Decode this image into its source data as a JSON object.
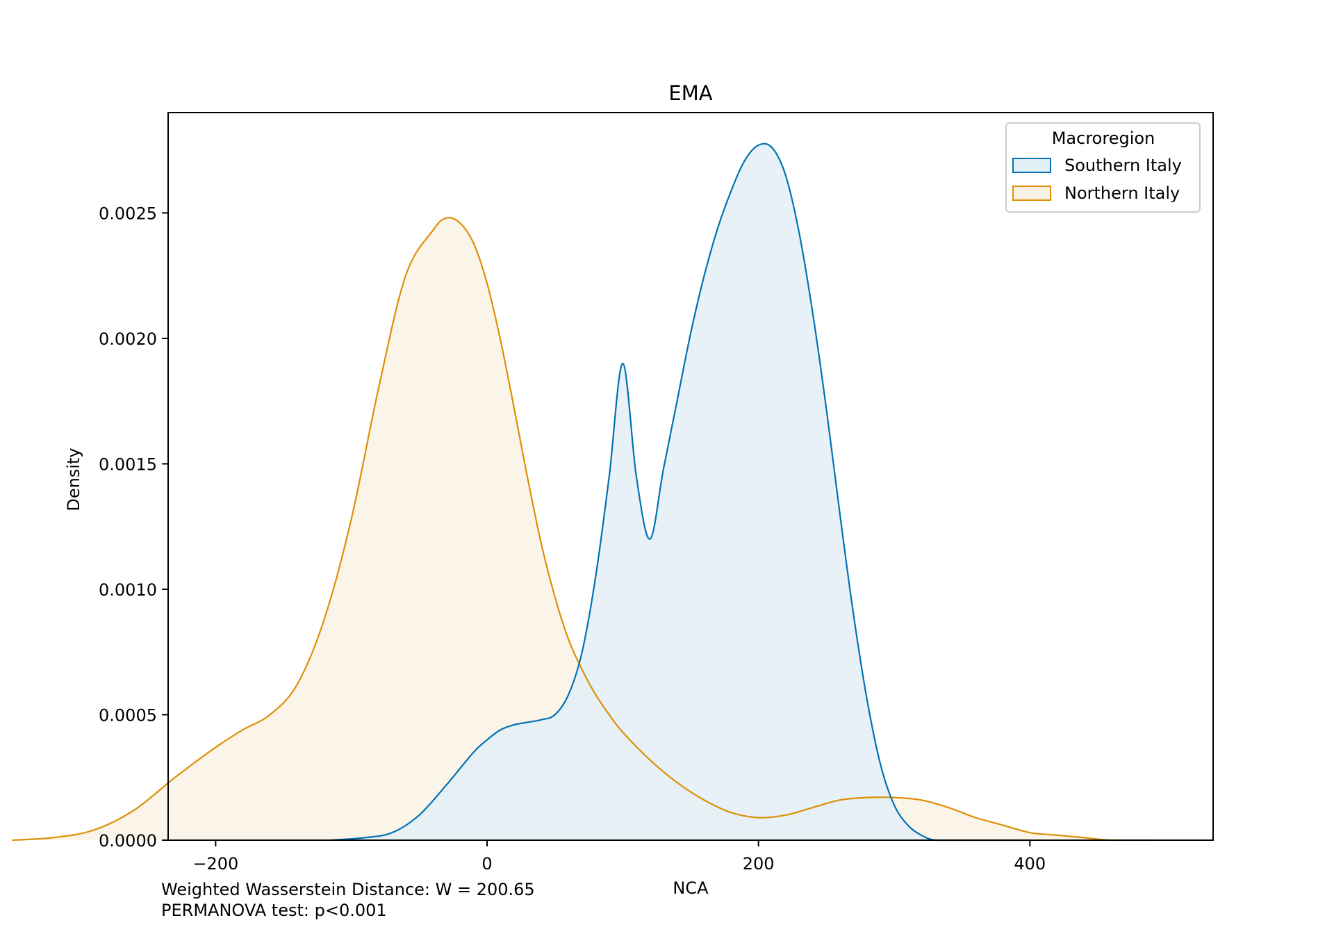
{
  "chart_data": {
    "type": "area",
    "title": "EMA",
    "xlabel": "NCA",
    "ylabel": "Density",
    "xlim": [
      -235,
      535
    ],
    "ylim": [
      0,
      0.0029
    ],
    "xticks": [
      -200,
      0,
      200,
      400
    ],
    "xtick_labels": [
      "−200",
      "0",
      "200",
      "400"
    ],
    "yticks": [
      0,
      0.0005,
      0.001,
      0.0015,
      0.002,
      0.0025
    ],
    "ytick_labels": [
      "0.0000",
      "0.0005",
      "0.0010",
      "0.0015",
      "0.0020",
      "0.0025"
    ],
    "grid": false,
    "legend": {
      "title": "Macroregion",
      "placement": "top-right"
    },
    "series": [
      {
        "name": "Southern Italy",
        "line_color": "#0072b2",
        "fill_color": "#e3eff6",
        "x": [
          -115,
          -90,
          -70,
          -50,
          -30,
          -10,
          0,
          10,
          20,
          30,
          40,
          50,
          60,
          70,
          80,
          90,
          100,
          110,
          120,
          130,
          140,
          150,
          160,
          170,
          180,
          190,
          200,
          210,
          220,
          230,
          240,
          250,
          260,
          270,
          280,
          290,
          300,
          310,
          320,
          330,
          345,
          360,
          385,
          400
        ],
        "values": [
          0.0,
          1e-05,
          3e-05,
          0.0001,
          0.00022,
          0.00035,
          0.0004,
          0.00044,
          0.00046,
          0.00047,
          0.00048,
          0.0005,
          0.00058,
          0.00075,
          0.00105,
          0.00145,
          0.0019,
          0.00145,
          0.0012,
          0.00148,
          0.00175,
          0.00202,
          0.00225,
          0.00244,
          0.00259,
          0.00271,
          0.00277,
          0.00276,
          0.00265,
          0.00242,
          0.0021,
          0.00172,
          0.0013,
          0.0009,
          0.00056,
          0.0003,
          0.00014,
          6e-05,
          2e-05,
          0.0,
          0.0,
          0.0,
          0.0,
          0.0
        ]
      },
      {
        "name": "Northern Italy",
        "line_color": "#de8f05",
        "fill_color": "#faf2e5",
        "x": [
          -350,
          -320,
          -290,
          -260,
          -230,
          -200,
          -180,
          -160,
          -140,
          -120,
          -100,
          -80,
          -60,
          -40,
          -30,
          -20,
          -10,
          0,
          10,
          20,
          30,
          40,
          50,
          60,
          70,
          80,
          90,
          100,
          120,
          140,
          160,
          180,
          200,
          220,
          240,
          260,
          280,
          300,
          320,
          340,
          360,
          380,
          400,
          420,
          440,
          460,
          490
        ],
        "values": [
          0.0,
          1e-05,
          4e-05,
          0.00012,
          0.00025,
          0.00037,
          0.00044,
          0.0005,
          0.00062,
          0.00088,
          0.00128,
          0.0018,
          0.00225,
          0.00243,
          0.00248,
          0.00246,
          0.00238,
          0.00222,
          0.00199,
          0.00172,
          0.00144,
          0.00118,
          0.00097,
          0.0008,
          0.00068,
          0.00058,
          0.0005,
          0.00043,
          0.00032,
          0.00023,
          0.00016,
          0.00011,
          9e-05,
          0.0001,
          0.00013,
          0.00016,
          0.00017,
          0.00017,
          0.00016,
          0.00013,
          9e-05,
          6e-05,
          3e-05,
          2e-05,
          1e-05,
          0.0,
          0.0
        ]
      }
    ],
    "annotations": [
      "Weighted Wasserstein Distance: W = 200.65",
      "PERMANOVA test: p<0.001"
    ]
  }
}
